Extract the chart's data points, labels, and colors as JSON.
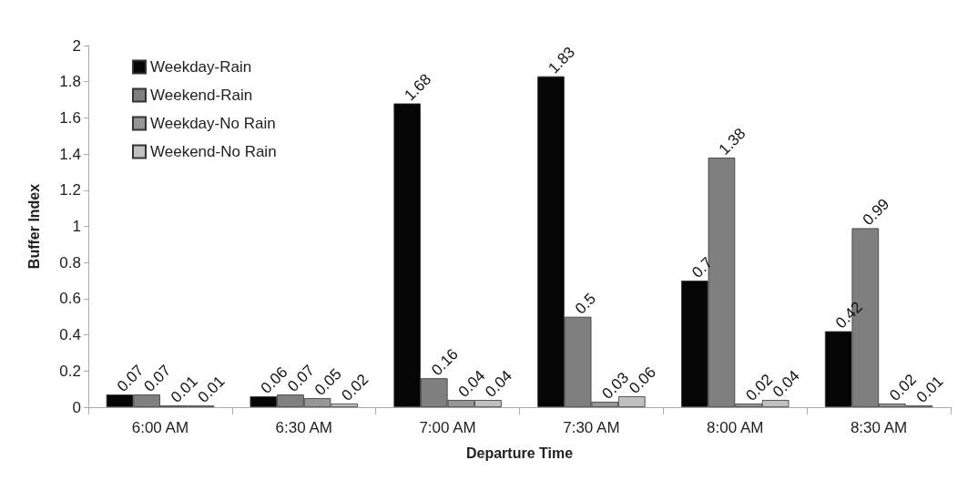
{
  "chart_data": {
    "type": "bar",
    "xlabel": "Departure Time",
    "ylabel": "Buffer Index",
    "categories": [
      "6:00 AM",
      "6:30 AM",
      "7:00 AM",
      "7:30 AM",
      "8:00 AM",
      "8:30 AM"
    ],
    "series": [
      {
        "name": "Weekday-Rain",
        "color": "#050505",
        "values": [
          0.07,
          0.06,
          1.68,
          1.83,
          0.7,
          0.42
        ]
      },
      {
        "name": "Weekend-Rain",
        "color": "#7f7f7f",
        "values": [
          0.07,
          0.07,
          0.16,
          0.5,
          1.38,
          0.99
        ]
      },
      {
        "name": "Weekday-No Rain",
        "color": "#969696",
        "values": [
          0.01,
          0.05,
          0.04,
          0.03,
          0.02,
          0.02
        ]
      },
      {
        "name": "Weekend-No Rain",
        "color": "#c0c0c0",
        "values": [
          0.01,
          0.02,
          0.04,
          0.06,
          0.04,
          0.01
        ]
      }
    ],
    "ylim": [
      0,
      2
    ],
    "yticks": [
      0,
      0.2,
      0.4,
      0.6,
      0.8,
      1,
      1.2,
      1.4,
      1.6,
      1.8,
      2
    ],
    "grid": false,
    "legend": "top left",
    "data_labels": true
  }
}
